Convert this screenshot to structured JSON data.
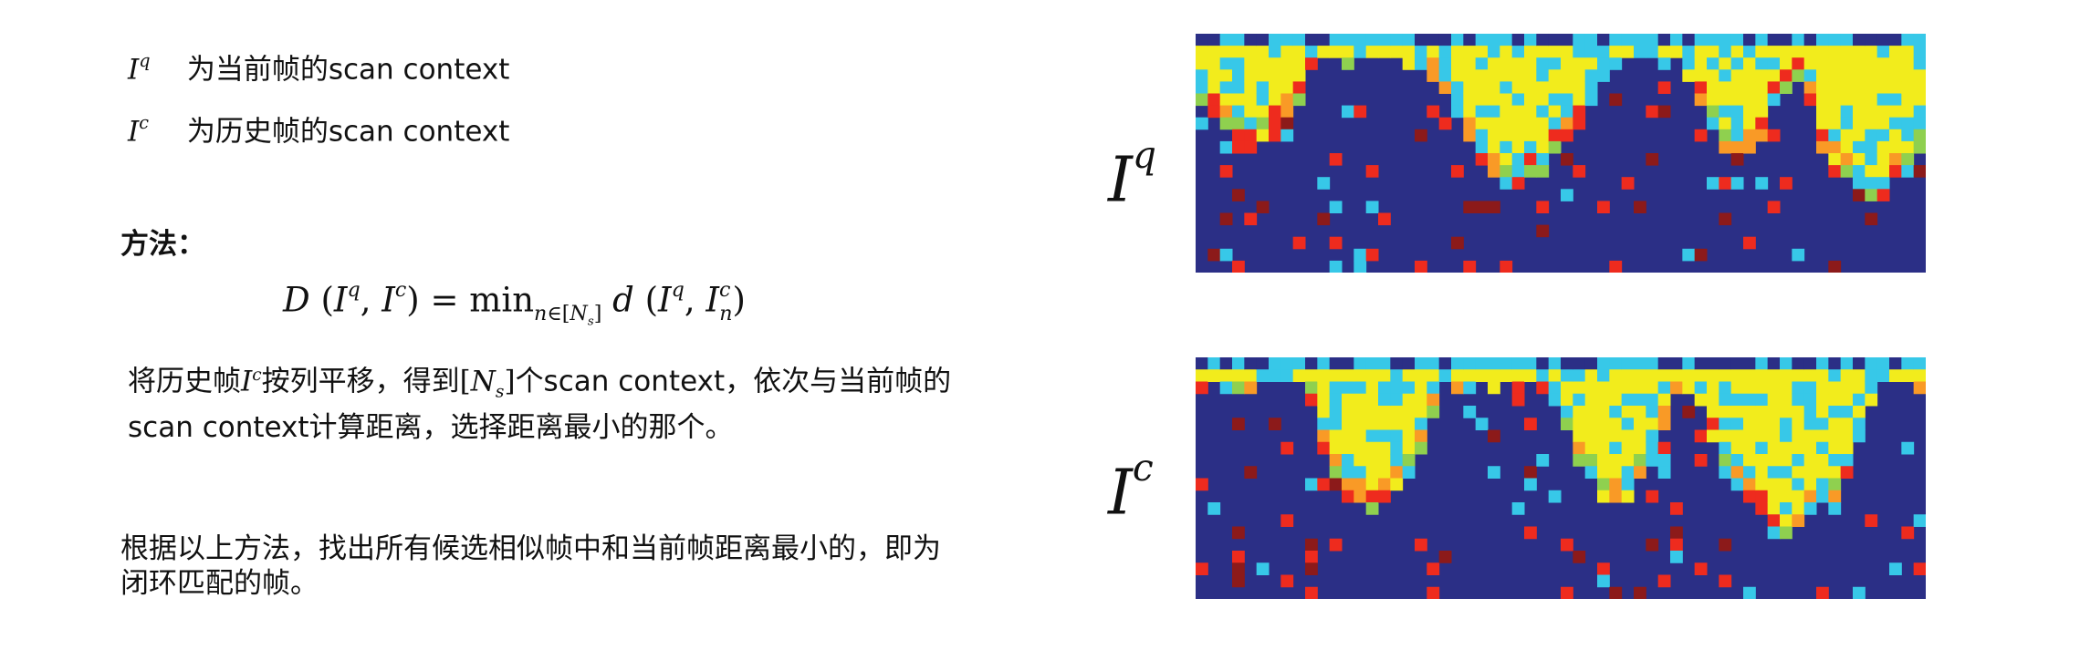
{
  "definitions": [
    {
      "symbol": "I",
      "superscript": "q",
      "text": "为当前帧的scan context"
    },
    {
      "symbol": "I",
      "superscript": "c",
      "text": "为历史帧的scan context"
    }
  ],
  "method_heading": "方法：",
  "formula": {
    "lhs_func": "D",
    "operator": "=",
    "min_word": "min",
    "min_subscript_var": "n",
    "min_subscript_rel": "∈",
    "min_subscript_set": "N",
    "min_subscript_set_sub": "s",
    "rhs_func": "d",
    "rhs_index": "n"
  },
  "description": {
    "line1_before": "将历史帧",
    "line1_symbol": "I",
    "line1_symbol_sup": "c",
    "line1_middle": "按列平移，得到",
    "line1_set": "N",
    "line1_set_sub": "s",
    "line1_after": "个scan context，依次与当前帧的",
    "line2": "scan context计算距离，选择距离最小的那个。"
  },
  "conclusion": {
    "line1": "根据以上方法，找出所有候选相似帧中和当前帧距离最小的，即为",
    "line2": "闭环匹配的帧。"
  },
  "figure_labels": {
    "query": {
      "symbol": "I",
      "superscript": "q"
    },
    "candidate": {
      "symbol": "I",
      "superscript": "c"
    }
  },
  "colormap": {
    "background": "#2b2f86",
    "blue": "#3b5fc9",
    "lightblue": "#37c8e8",
    "cyan": "#3ed0c0",
    "green": "#8fd04f",
    "yellow": "#f2ec1c",
    "orange": "#f99a26",
    "red": "#ee2b1e",
    "darkred": "#8c1a1a"
  }
}
